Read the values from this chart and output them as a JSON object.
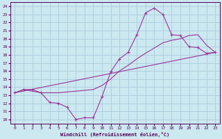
{
  "xlabel": "Windchill (Refroidissement éolien,°C)",
  "bg_color": "#cce8f0",
  "grid_color": "#aaccdd",
  "line_color": "#993399",
  "xlim": [
    -0.5,
    23.5
  ],
  "ylim": [
    9.5,
    24.5
  ],
  "xticks": [
    0,
    1,
    2,
    3,
    4,
    5,
    6,
    7,
    8,
    9,
    10,
    11,
    12,
    13,
    14,
    15,
    16,
    17,
    18,
    19,
    20,
    21,
    22,
    23
  ],
  "yticks": [
    10,
    11,
    12,
    13,
    14,
    15,
    16,
    17,
    18,
    19,
    20,
    21,
    22,
    23,
    24
  ],
  "line1_x": [
    0,
    1,
    2,
    3,
    4,
    5,
    6,
    7,
    8,
    9,
    10,
    11,
    12,
    13,
    14,
    15,
    16,
    17,
    18,
    19,
    20,
    21,
    22,
    23
  ],
  "line1_y": [
    13.3,
    13.7,
    13.7,
    13.3,
    12.1,
    12.0,
    11.5,
    10.0,
    10.2,
    10.2,
    12.8,
    15.9,
    17.5,
    18.3,
    20.5,
    23.2,
    23.8,
    23.0,
    20.5,
    20.4,
    19.0,
    18.9,
    18.2,
    18.3
  ],
  "line2_x": [
    0,
    23
  ],
  "line2_y": [
    13.3,
    18.3
  ],
  "line3_x": [
    0,
    1,
    3,
    5,
    9,
    10,
    11,
    12,
    13,
    14,
    15,
    17,
    18,
    19,
    20,
    21,
    22,
    23
  ],
  "line3_y": [
    13.3,
    13.7,
    13.3,
    13.3,
    13.7,
    14.2,
    15.0,
    16.0,
    16.7,
    17.5,
    18.2,
    19.5,
    19.8,
    20.0,
    20.4,
    20.5,
    19.2,
    18.3
  ]
}
